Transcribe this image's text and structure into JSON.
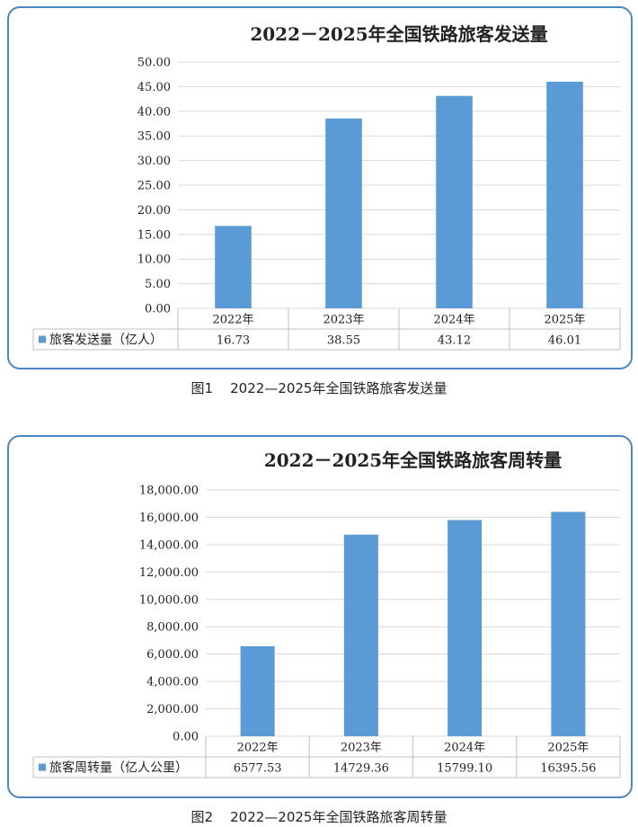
{
  "captions": [
    {
      "num": "图1",
      "text": "2022—2025年全国铁路旅客发送量"
    },
    {
      "num": "图2",
      "text": "2022—2025年全国铁路旅客周转量"
    }
  ],
  "colors": {
    "bar": "#5b9bd5",
    "frame": "#4e86c4",
    "grid": "#d9d9d9",
    "table": "#bfbfbf"
  },
  "chart_data": [
    {
      "type": "bar",
      "title": "2022－2025年全国铁路旅客发送量",
      "categories": [
        "2022年",
        "2023年",
        "2024年",
        "2025年"
      ],
      "series": [
        {
          "name": "旅客发送量（亿人）",
          "values": [
            16.73,
            38.55,
            43.12,
            46.01
          ]
        }
      ],
      "value_labels": [
        "16.73",
        "38.55",
        "43.12",
        "46.01"
      ],
      "ylim": [
        0,
        50
      ],
      "yticks": [
        "0.00",
        "5.00",
        "10.00",
        "15.00",
        "20.00",
        "25.00",
        "30.00",
        "35.00",
        "40.00",
        "45.00",
        "50.00"
      ],
      "ystep": 5,
      "grid": true,
      "legend": "data-table"
    },
    {
      "type": "bar",
      "title": "2022－2025年全国铁路旅客周转量",
      "categories": [
        "2022年",
        "2023年",
        "2024年",
        "2025年"
      ],
      "series": [
        {
          "name": "旅客周转量（亿人公里）",
          "values": [
            6577.53,
            14729.36,
            15799.1,
            16395.56
          ]
        }
      ],
      "value_labels": [
        "6577.53",
        "14729.36",
        "15799.10",
        "16395.56"
      ],
      "ylim": [
        0,
        18000
      ],
      "yticks": [
        "0.00",
        "2,000.00",
        "4,000.00",
        "6,000.00",
        "8,000.00",
        "10,000.00",
        "12,000.00",
        "14,000.00",
        "16,000.00",
        "18,000.00"
      ],
      "ystep": 2000,
      "grid": true,
      "legend": "data-table"
    }
  ]
}
